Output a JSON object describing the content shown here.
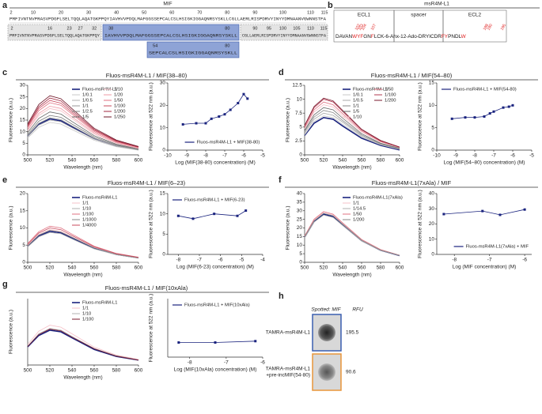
{
  "panel_labels": [
    "a",
    "b",
    "c",
    "d",
    "e",
    "f",
    "g",
    "h"
  ],
  "panel_a": {
    "title": "MIF",
    "full": {
      "numbers": [
        2,
        10,
        20,
        30,
        40,
        50,
        60,
        70,
        80,
        90,
        100,
        110,
        115
      ],
      "sequence": "PMFIVNTNVPRASVPDGFLSELTQQLAQATGKPPQYIAVHVVPDQLMAFGGSSEPCALCSLHSIGKIGGAQNRSYSKLLCGLLAERLRISPDRVYINYYDMNAANVGWNNSTFA"
    },
    "segments": [
      {
        "numbers": [
          2,
          16,
          23,
          27,
          32
        ],
        "sequence": "PMFIVNTNVPRASVPDGFLSELTQQLAQATGKPPQY"
      },
      {
        "numbers": [
          38,
          80
        ],
        "sequence": "IAVHVVPDQLMAFGGSSEPCALCSLHSIGKIGGAQNRSYSKLL"
      },
      {
        "numbers": [
          90,
          95,
          100,
          105,
          110,
          115
        ],
        "sequence": "CGLLAERLRISPDRVYINYYDMNAANVGWNNSTFA"
      },
      {
        "numbers": [
          54,
          80
        ],
        "sequence": "SEPCALCSLHSIGKIGGAQNRSYSKLL"
      }
    ]
  },
  "panel_b": {
    "title": "msR4M-L1",
    "headers": [
      "ECL1",
      "spacer",
      "ECL2"
    ],
    "sequence": [
      {
        "text": "DAVAN",
        "color": "#111"
      },
      {
        "text": "WYF",
        "color": "#e02020"
      },
      {
        "text": "GN",
        "color": "#111"
      },
      {
        "text": "F",
        "color": "#e02020"
      },
      {
        "text": "LCK-6-Ahx-12-Ado-DRYICDR",
        "color": "#111"
      },
      {
        "text": "FY",
        "color": "#e02020"
      },
      {
        "text": "PNDL",
        "color": "#111"
      },
      {
        "text": "W",
        "color": "#e02020"
      }
    ],
    "residues": [
      102,
      103,
      104,
      107,
      188,
      190,
      195
    ]
  },
  "panel_h": {
    "spotted": "Spotted: MIF",
    "unit": "RFU",
    "rows": [
      {
        "label": [
          "TAMRA-msR4M-L1"
        ],
        "value": 195.5,
        "border": "#3a5fb0"
      },
      {
        "label": [
          "TAMRA-msR4M-L1",
          "+pre-incMIF(54-80)"
        ],
        "value": 90.6,
        "border": "#e8953a"
      }
    ]
  },
  "chart_data": [
    {
      "type": "line",
      "title": "Fluos-msR4M-L1 / MIF(38–80)",
      "xlabel": "Wavelength (nm)",
      "ylabel": "Fluorescence (a.u.)",
      "x": [
        500,
        510,
        520,
        530,
        540,
        560,
        580,
        600
      ],
      "xlim": [
        500,
        600
      ],
      "xticks": [
        500,
        520,
        540,
        560,
        580,
        600
      ],
      "ylim": [
        0,
        30
      ],
      "yticks": [
        0,
        5,
        10,
        15,
        20,
        25,
        30
      ],
      "legend": "upper right",
      "series": [
        {
          "name": "Fluos-msR4M-L1",
          "color": "#1a237e",
          "values": [
            8.1,
            13.2,
            15.5,
            14.7,
            12.1,
            7.0,
            3.9,
            2.2
          ]
        },
        {
          "name": "1/0.1",
          "color": "#c8c8c8",
          "values": [
            7.3,
            11.9,
            14,
            13.3,
            10.9,
            6.3,
            3.5,
            2.0
          ]
        },
        {
          "name": "1/0.5",
          "color": "#b0b0b0",
          "values": [
            7.8,
            12.8,
            15,
            14.3,
            11.7,
            6.8,
            3.8,
            2.1
          ]
        },
        {
          "name": "1/1",
          "color": "#999999",
          "values": [
            8.3,
            13.6,
            16,
            15.2,
            12.5,
            7.2,
            4.0,
            2.2
          ]
        },
        {
          "name": "1/2.5",
          "color": "#808080",
          "values": [
            8.8,
            14.5,
            17,
            16.2,
            13.3,
            7.7,
            4.3,
            2.4
          ]
        },
        {
          "name": "1/5",
          "color": "#666666",
          "values": [
            9.6,
            15.7,
            18.5,
            17.6,
            14.4,
            8.3,
            4.6,
            2.6
          ]
        },
        {
          "name": "1/10",
          "color": "#f6c1c8",
          "values": [
            10.4,
            17,
            20,
            19,
            15.6,
            9,
            5,
            2.8
          ]
        },
        {
          "name": "1/20",
          "color": "#ef9aa6",
          "values": [
            10.9,
            17.9,
            21,
            20,
            16.4,
            9.5,
            5.3,
            2.9
          ]
        },
        {
          "name": "1/50",
          "color": "#e07080",
          "values": [
            11.7,
            19.1,
            22.5,
            21.4,
            17.6,
            10.1,
            5.6,
            3.2
          ]
        },
        {
          "name": "1/100",
          "color": "#c8485c",
          "values": [
            12.2,
            20,
            23.5,
            22.3,
            18.3,
            10.6,
            5.9,
            3.3
          ]
        },
        {
          "name": "1/200",
          "color": "#a02840",
          "values": [
            12.7,
            20.8,
            24.5,
            23.3,
            19.1,
            11,
            6.1,
            3.4
          ]
        },
        {
          "name": "1/250",
          "color": "#6e1426",
          "values": [
            13.3,
            21.7,
            25.5,
            24.2,
            19.9,
            11.5,
            6.4,
            3.6
          ]
        }
      ]
    },
    {
      "type": "scatter",
      "xlabel": "Log (MIF(38-80) concentration) (M)",
      "ylabel": "Fluorescence at 522 nm (a.u.)",
      "x": [
        -9.2,
        -8.5,
        -8,
        -7.7,
        -7.3,
        -7,
        -6.7,
        -6.3,
        -6,
        -5.8
      ],
      "xlim": [
        -10,
        -5
      ],
      "xticks": [
        -10,
        -9,
        -8,
        -7,
        -6,
        -5
      ],
      "ylim": [
        0,
        30
      ],
      "yticks": [
        0,
        10,
        20,
        30
      ],
      "legend": "lower right",
      "series": [
        {
          "name": "Fluos-msR4M-L1 + MIF(38-80)",
          "color": "#1a237e",
          "values": [
            11.5,
            12,
            12,
            14,
            15,
            16,
            18,
            21,
            25,
            23
          ]
        }
      ]
    },
    {
      "type": "line",
      "title": "Fluos-msR4M-L1 / MIF(54–80)",
      "xlabel": "Wavelength (nm)",
      "ylabel": "Fluorescence (a.u.)",
      "x": [
        500,
        510,
        520,
        530,
        540,
        560,
        580,
        600
      ],
      "xlim": [
        500,
        600
      ],
      "xticks": [
        500,
        520,
        540,
        560,
        580,
        600
      ],
      "ylim": [
        0,
        12.5
      ],
      "yticks": [
        0,
        2.5,
        5,
        7.5,
        10,
        12.5
      ],
      "legend": "upper right",
      "series": [
        {
          "name": "Fluos-msR4M-L1",
          "color": "#1a237e",
          "values": [
            3.5,
            5.7,
            6.7,
            6.4,
            5.2,
            3.0,
            1.7,
            0.9
          ]
        },
        {
          "name": "1/0.1",
          "color": "#c8c8c8",
          "values": [
            3.6,
            6.0,
            7.0,
            6.7,
            5.5,
            3.2,
            1.8,
            1.0
          ]
        },
        {
          "name": "1/0.5",
          "color": "#a8a8a8",
          "values": [
            3.9,
            6.4,
            7.5,
            7.1,
            5.9,
            3.4,
            1.9,
            1.1
          ]
        },
        {
          "name": "1/1",
          "color": "#888888",
          "values": [
            4.2,
            6.8,
            8.0,
            7.6,
            6.2,
            3.6,
            2.0,
            1.1
          ]
        },
        {
          "name": "1/5",
          "color": "#666666",
          "values": [
            4.4,
            7.2,
            8.5,
            8.1,
            6.6,
            3.8,
            2.1,
            1.2
          ]
        },
        {
          "name": "1/10",
          "color": "#f6c1c8",
          "values": [
            4.7,
            7.7,
            9.0,
            8.6,
            7.0,
            4.1,
            2.3,
            1.3
          ]
        },
        {
          "name": "1/50",
          "color": "#e07080",
          "values": [
            4.9,
            8.1,
            9.5,
            9.0,
            7.4,
            4.3,
            2.4,
            1.3
          ]
        },
        {
          "name": "1/100",
          "color": "#b03850",
          "values": [
            5.2,
            8.5,
            10,
            9.5,
            7.8,
            4.5,
            2.5,
            1.4
          ]
        },
        {
          "name": "1/200",
          "color": "#7a1a2e",
          "values": [
            5.3,
            8.7,
            10.2,
            9.7,
            8.0,
            4.6,
            2.6,
            1.4
          ]
        }
      ]
    },
    {
      "type": "scatter",
      "xlabel": "Log (MIF(54–80) concentration) (M)",
      "ylabel": "Fluorescence at 522 nm (a.u.)",
      "x": [
        -9.2,
        -8.5,
        -8,
        -7.5,
        -7.2,
        -7,
        -6.5,
        -6.2,
        -6
      ],
      "xlim": [
        -10,
        -5
      ],
      "xticks": [
        -10,
        -9,
        -8,
        -7,
        -6,
        -5
      ],
      "ylim": [
        0,
        15
      ],
      "yticks": [
        0,
        5,
        10,
        15
      ],
      "legend": "upper left",
      "series": [
        {
          "name": "Fluos-msR4M-L1 + MIF(54-80)",
          "color": "#1a237e",
          "values": [
            7,
            7.3,
            7.3,
            7.5,
            8.2,
            8.6,
            9.5,
            9.7,
            10
          ]
        }
      ]
    },
    {
      "type": "line",
      "title": "Fluos-msR4M-L1 / MIF(6–23)",
      "xlabel": "Wavelength (nm)",
      "ylabel": "Fluorescence (a.u.)",
      "x": [
        500,
        510,
        520,
        530,
        540,
        560,
        580,
        600
      ],
      "xlim": [
        500,
        600
      ],
      "xticks": [
        500,
        520,
        540,
        560,
        580,
        600
      ],
      "ylim": [
        0,
        20
      ],
      "yticks": [
        0,
        5,
        10,
        15,
        20
      ],
      "legend": "upper right",
      "series": [
        {
          "name": "Fluos-msR4M-L1",
          "color": "#1a237e",
          "values": [
            4.7,
            7.7,
            9,
            8.6,
            7.0,
            4.1,
            2.3,
            1.3
          ]
        },
        {
          "name": "1/1",
          "color": "#f6c1c8",
          "values": [
            4.9,
            8.1,
            9.5,
            9.0,
            7.4,
            4.3,
            2.4,
            1.3
          ]
        },
        {
          "name": "1/10",
          "color": "#b0b0b0",
          "values": [
            4.5,
            7.4,
            8.7,
            8.3,
            6.8,
            3.9,
            2.2,
            1.2
          ]
        },
        {
          "name": "1/100",
          "color": "#e07080",
          "values": [
            5.5,
            8.9,
            10.5,
            10,
            8.2,
            4.7,
            2.6,
            1.5
          ]
        },
        {
          "name": "1/1000",
          "color": "#888888",
          "values": [
            4.8,
            7.9,
            9.3,
            8.8,
            7.3,
            4.2,
            2.3,
            1.3
          ]
        },
        {
          "name": "1/4000",
          "color": "#c8485c",
          "values": [
            5.2,
            8.5,
            10,
            9.5,
            7.8,
            4.5,
            2.5,
            1.4
          ]
        }
      ]
    },
    {
      "type": "scatter",
      "xlabel": "Log (MIF(6-23) concentration) (M)",
      "ylabel": "Fluorescence at 522 nm (a.u.)",
      "x": [
        -8,
        -7.3,
        -6.3,
        -5.2,
        -4.8
      ],
      "xlim": [
        -8.5,
        -4
      ],
      "xticks": [
        -8,
        -7,
        -6,
        -5,
        -4
      ],
      "ylim": [
        0,
        15
      ],
      "yticks": [
        0,
        5,
        10,
        15
      ],
      "legend": "upper left",
      "series": [
        {
          "name": "Fluos-msR4M-L1 + MIF(6-23)",
          "color": "#1a237e",
          "values": [
            9.5,
            8.8,
            10,
            9.5,
            10.8
          ]
        }
      ]
    },
    {
      "type": "line",
      "title": "Fluos-msR4M-L1(7xAla) / MIF",
      "xlabel": "Wavelength (nm)",
      "ylabel": "Fluorescence (a.u.)",
      "x": [
        500,
        510,
        520,
        530,
        540,
        560,
        580,
        600
      ],
      "xlim": [
        500,
        600
      ],
      "xticks": [
        500,
        520,
        540,
        560,
        580,
        600
      ],
      "ylim": [
        0,
        40
      ],
      "yticks": [
        0,
        5,
        10,
        15,
        20,
        25,
        30,
        35,
        40
      ],
      "legend": "upper right",
      "series": [
        {
          "name": "Fluos-msR4M-L1(7xAla)",
          "color": "#1a237e",
          "values": [
            14.6,
            23.8,
            28,
            26.6,
            21.8,
            12.6,
            7.0,
            3.9
          ]
        },
        {
          "name": "1/1",
          "color": "#f6c1c8",
          "values": [
            15.1,
            24.7,
            29,
            27.6,
            22.6,
            13.1,
            7.3,
            4.1
          ]
        },
        {
          "name": "1/14.5",
          "color": "#b0b0b0",
          "values": [
            14.3,
            23.4,
            27.5,
            26.1,
            21.5,
            12.4,
            6.9,
            3.9
          ]
        },
        {
          "name": "1/50",
          "color": "#e07080",
          "values": [
            15.3,
            25.1,
            29.5,
            28,
            23,
            13.3,
            7.4,
            4.1
          ]
        },
        {
          "name": "1/200",
          "color": "#888888",
          "values": [
            14.8,
            24.2,
            28.5,
            27.1,
            22.2,
            12.8,
            7.1,
            4.0
          ]
        }
      ]
    },
    {
      "type": "scatter",
      "xlabel": "Log (MIF concentration) (M)",
      "ylabel": "Fluorescence at 522 nm (a.u.)",
      "x": [
        -8.3,
        -7.2,
        -6.7,
        -6
      ],
      "xlim": [
        -8.5,
        -5.8
      ],
      "xticks": [
        -8,
        -7,
        -6
      ],
      "ylim": [
        0,
        40
      ],
      "yticks": [
        0,
        10,
        20,
        30,
        40
      ],
      "legend": "lower right",
      "series": [
        {
          "name": "Fluos-msR4M-L1(7xAla) + MIF",
          "color": "#1a237e",
          "values": [
            26.5,
            28.5,
            26,
            29.5
          ]
        }
      ]
    },
    {
      "type": "line",
      "title": "Fluos-msR4M-L1 / MIF(10xAla)",
      "xlabel": "Wavelength (nm)",
      "ylabel": "Fluorescence (a.u.)",
      "x": [
        500,
        510,
        520,
        530,
        540,
        560,
        580,
        600
      ],
      "xlim": [
        500,
        600
      ],
      "xticks": [
        500,
        520,
        540,
        560,
        580,
        600
      ],
      "ylim": [
        0,
        20
      ],
      "legend": "upper right",
      "series": [
        {
          "name": "Fluos-msR4M-L1",
          "color": "#1a237e",
          "values": [
            5.5,
            8.9,
            10.5,
            10,
            8.2,
            4.7,
            2.6,
            1.5
          ]
        },
        {
          "name": "1/1",
          "color": "#f6c1c8",
          "values": [
            6.2,
            10.2,
            12,
            11.4,
            9.4,
            5.4,
            3.0,
            1.7
          ]
        },
        {
          "name": "1/10",
          "color": "#b0b0b0",
          "values": [
            5.7,
            9.4,
            11,
            10.5,
            8.6,
            5,
            2.8,
            1.5
          ]
        },
        {
          "name": "1/100",
          "color": "#7a1a2e",
          "values": [
            5.6,
            9.2,
            10.8,
            10.3,
            8.4,
            4.9,
            2.7,
            1.5
          ]
        }
      ]
    },
    {
      "type": "scatter",
      "xlabel": "Log (MIF(10xAla) concentration) (M)",
      "ylabel": "Fluorescence at 522 nm (a.u.)",
      "x": [
        -8.3,
        -7.3,
        -6.2
      ],
      "xlim": [
        -8.6,
        -6
      ],
      "xticks": [
        -8,
        -7,
        -6
      ],
      "ylim": [
        0,
        30
      ],
      "legend": "upper left",
      "series": [
        {
          "name": "Fluos-msR4M-L1 + MIF(10xAla)",
          "color": "#1a237e",
          "values": [
            7.5,
            7.5,
            8.2
          ]
        }
      ]
    }
  ]
}
